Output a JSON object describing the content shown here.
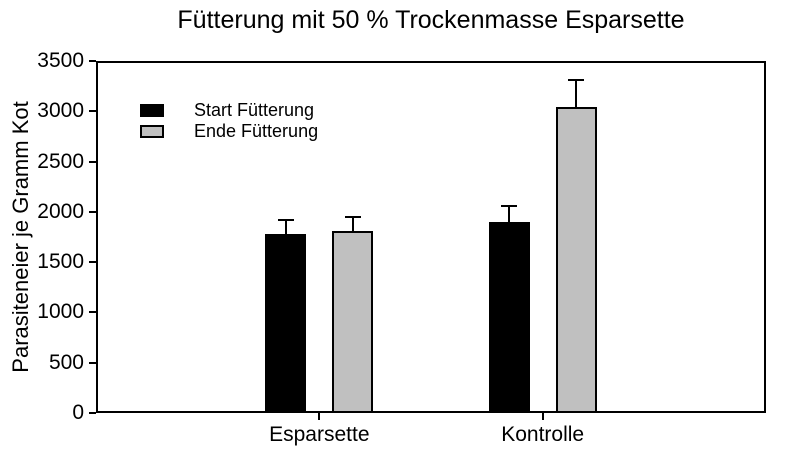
{
  "chart_data": {
    "type": "bar",
    "title": "Fütterung mit 50 % Trockenmasse Esparsette",
    "xlabel": "",
    "ylabel": "Parasiteneier je Gramm Kot",
    "categories": [
      "Esparsette",
      "Kontrolle"
    ],
    "series": [
      {
        "name": "Start Fütterung",
        "color": "#000000",
        "values": [
          1775,
          1900
        ],
        "errors_plus": [
          140,
          155
        ]
      },
      {
        "name": "Ende Fütterung",
        "color": "#c0c0c0",
        "values": [
          1810,
          3045
        ],
        "errors_plus": [
          135,
          270
        ]
      }
    ],
    "ylim": [
      0,
      3500
    ],
    "yticks": [
      0,
      500,
      1000,
      1500,
      2000,
      2500,
      3000,
      3500
    ],
    "grid": false,
    "legend_position": "inside-top-left",
    "error_bars": "upper-only",
    "frame": "full-box"
  },
  "colors": {
    "background": "#ffffff",
    "axis": "#000000",
    "text": "#000000",
    "bar_start": "#000000",
    "bar_ende": "#c0c0c0"
  }
}
